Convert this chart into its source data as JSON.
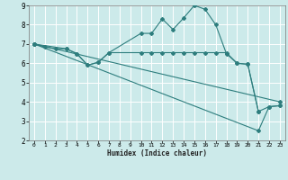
{
  "xlabel": "Humidex (Indice chaleur)",
  "bg_color": "#cceaea",
  "grid_color": "#ffffff",
  "line_color": "#2d7d7d",
  "xlim": [
    -0.5,
    23.5
  ],
  "ylim": [
    2,
    9
  ],
  "xticks": [
    0,
    1,
    2,
    3,
    4,
    5,
    6,
    7,
    8,
    9,
    10,
    11,
    12,
    13,
    14,
    15,
    16,
    17,
    18,
    19,
    20,
    21,
    22,
    23
  ],
  "yticks": [
    2,
    3,
    4,
    5,
    6,
    7,
    8,
    9
  ],
  "series1_x": [
    0,
    1,
    2,
    3,
    4,
    5,
    6,
    7,
    10,
    11,
    12,
    13,
    14,
    15,
    16,
    17,
    18,
    19,
    20,
    21
  ],
  "series1_y": [
    7.0,
    6.85,
    6.75,
    6.75,
    6.5,
    5.9,
    6.05,
    6.55,
    7.55,
    7.55,
    8.3,
    7.75,
    8.35,
    9.0,
    8.8,
    8.0,
    6.5,
    6.0,
    5.95,
    3.5
  ],
  "series2_x": [
    0,
    3,
    4,
    5,
    6,
    7,
    10,
    11,
    12,
    13,
    14,
    15,
    16,
    17,
    18,
    19,
    20,
    21,
    22,
    23
  ],
  "series2_y": [
    7.0,
    6.75,
    6.5,
    5.9,
    6.05,
    6.55,
    6.55,
    6.55,
    6.55,
    6.55,
    6.55,
    6.55,
    6.55,
    6.55,
    6.55,
    6.0,
    5.95,
    3.5,
    3.75,
    3.8
  ],
  "series3_x": [
    0,
    23
  ],
  "series3_y": [
    7.0,
    4.0
  ],
  "series4_x": [
    0,
    21,
    22,
    23
  ],
  "series4_y": [
    7.0,
    2.5,
    3.75,
    3.8
  ]
}
